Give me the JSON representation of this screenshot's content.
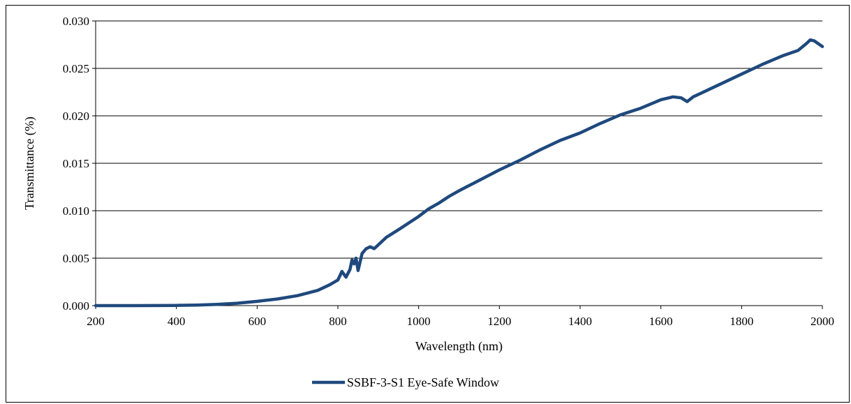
{
  "chart_data": {
    "type": "line",
    "title": "",
    "xlabel": "Wavelength (nm)",
    "ylabel": "Transmittance (%)",
    "xlim": [
      200,
      2000
    ],
    "ylim": [
      0,
      0.03
    ],
    "x_ticks": [
      "200",
      "400",
      "600",
      "800",
      "1000",
      "1200",
      "1400",
      "1600",
      "1800",
      "2000"
    ],
    "y_ticks": [
      "0.000",
      "0.005",
      "0.010",
      "0.015",
      "0.020",
      "0.025",
      "0.030"
    ],
    "grid": "horizontal",
    "legend_position": "bottom",
    "series": [
      {
        "name": "SSBF-3-S1 Eye-Safe Window",
        "color": "#1f497d",
        "x": [
          200,
          300,
          400,
          450,
          500,
          550,
          600,
          650,
          700,
          750,
          780,
          800,
          810,
          820,
          830,
          835,
          840,
          845,
          850,
          860,
          870,
          880,
          890,
          900,
          920,
          950,
          975,
          1000,
          1025,
          1050,
          1075,
          1100,
          1150,
          1200,
          1250,
          1300,
          1350,
          1400,
          1450,
          1500,
          1550,
          1600,
          1630,
          1650,
          1665,
          1680,
          1700,
          1750,
          1800,
          1850,
          1900,
          1940,
          1960,
          1970,
          1980,
          1990,
          2000
        ],
        "y": [
          0.0,
          0.0,
          2e-05,
          6e-05,
          0.00013,
          0.00025,
          0.00045,
          0.0007,
          0.00105,
          0.0016,
          0.0022,
          0.0027,
          0.0036,
          0.003,
          0.0038,
          0.0048,
          0.0044,
          0.005,
          0.0037,
          0.0055,
          0.006,
          0.0062,
          0.006,
          0.0064,
          0.0072,
          0.008,
          0.0087,
          0.0094,
          0.0102,
          0.0108,
          0.0115,
          0.0121,
          0.0132,
          0.0143,
          0.0153,
          0.0164,
          0.0174,
          0.0182,
          0.0192,
          0.0201,
          0.0208,
          0.0217,
          0.022,
          0.0219,
          0.0215,
          0.022,
          0.0224,
          0.0234,
          0.0244,
          0.0254,
          0.0263,
          0.0269,
          0.0276,
          0.028,
          0.0279,
          0.0276,
          0.0273
        ]
      }
    ]
  }
}
